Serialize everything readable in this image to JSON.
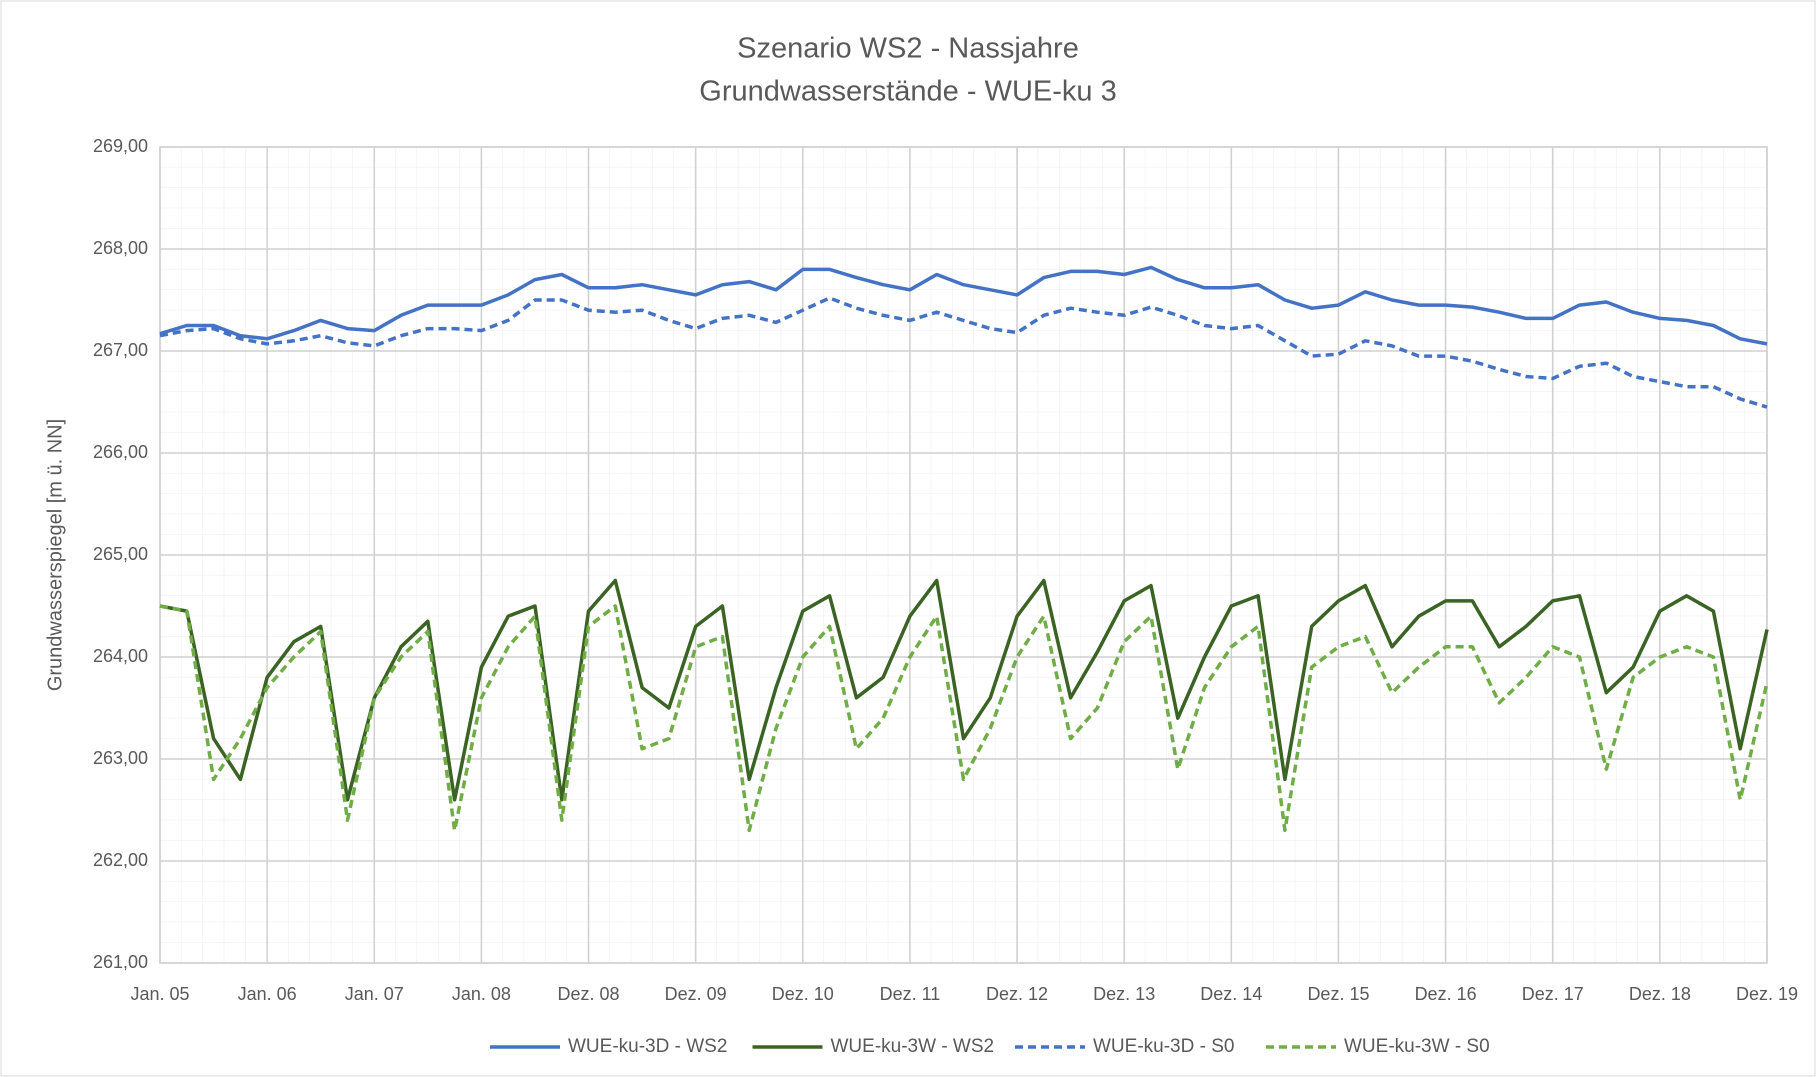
{
  "chart_data": {
    "type": "line",
    "title": "Szenario WS2 - Nassjahre",
    "subtitle": "Grundwasserstände - WUE-ku 3",
    "y_label": "Grundwasserspiegel [m ü. NN]",
    "x": [
      0,
      0.25,
      0.5,
      0.75,
      1,
      1.25,
      1.5,
      1.75,
      2,
      2.25,
      2.5,
      2.75,
      3,
      3.25,
      3.5,
      3.75,
      4,
      4.25,
      4.5,
      4.75,
      5,
      5.25,
      5.5,
      5.75,
      6,
      6.25,
      6.5,
      6.75,
      7,
      7.25,
      7.5,
      7.75,
      8,
      8.25,
      8.5,
      8.75,
      9,
      9.25,
      9.5,
      9.75,
      10,
      10.25,
      10.5,
      10.75,
      11,
      11.25,
      11.5,
      11.75,
      12,
      12.25,
      12.5,
      12.75,
      13,
      13.25,
      13.5,
      13.75,
      14,
      14.25,
      14.5,
      14.75,
      15
    ],
    "xlim": [
      0,
      15
    ],
    "xticks": [
      {
        "value": 0,
        "label": "Jan. 05"
      },
      {
        "value": 1,
        "label": "Jan. 06"
      },
      {
        "value": 2,
        "label": "Jan. 07"
      },
      {
        "value": 3,
        "label": "Jan. 08"
      },
      {
        "value": 4,
        "label": "Dez. 08"
      },
      {
        "value": 5,
        "label": "Dez. 09"
      },
      {
        "value": 6,
        "label": "Dez. 10"
      },
      {
        "value": 7,
        "label": "Dez. 11"
      },
      {
        "value": 8,
        "label": "Dez. 12"
      },
      {
        "value": 9,
        "label": "Dez. 13"
      },
      {
        "value": 10,
        "label": "Dez. 14"
      },
      {
        "value": 11,
        "label": "Dez. 15"
      },
      {
        "value": 12,
        "label": "Dez. 16"
      },
      {
        "value": 13,
        "label": "Dez. 17"
      },
      {
        "value": 14,
        "label": "Dez. 18"
      },
      {
        "value": 15,
        "label": "Dez. 19"
      }
    ],
    "ylim": [
      261,
      269
    ],
    "yticks": [
      {
        "value": 261,
        "label": "261,00"
      },
      {
        "value": 262,
        "label": "262,00"
      },
      {
        "value": 263,
        "label": "263,00"
      },
      {
        "value": 264,
        "label": "264,00"
      },
      {
        "value": 265,
        "label": "265,00"
      },
      {
        "value": 266,
        "label": "266,00"
      },
      {
        "value": 267,
        "label": "267,00"
      },
      {
        "value": 268,
        "label": "268,00"
      },
      {
        "value": 269,
        "label": "269,00"
      }
    ],
    "grid": true,
    "legend": "bottom",
    "series": [
      {
        "name": "WUE-ku-3D - WS2",
        "color": "#4472c4",
        "dashed": false,
        "values": [
          267.17,
          267.25,
          267.25,
          267.15,
          267.12,
          267.2,
          267.3,
          267.22,
          267.2,
          267.35,
          267.45,
          267.45,
          267.45,
          267.55,
          267.7,
          267.75,
          267.62,
          267.62,
          267.65,
          267.6,
          267.55,
          267.65,
          267.68,
          267.6,
          267.8,
          267.8,
          267.72,
          267.65,
          267.6,
          267.75,
          267.65,
          267.6,
          267.55,
          267.72,
          267.78,
          267.78,
          267.75,
          267.82,
          267.7,
          267.62,
          267.62,
          267.65,
          267.5,
          267.42,
          267.45,
          267.58,
          267.5,
          267.45,
          267.45,
          267.43,
          267.38,
          267.32,
          267.32,
          267.45,
          267.48,
          267.38,
          267.32,
          267.3,
          267.25,
          267.12,
          267.07
        ]
      },
      {
        "name": "WUE-ku-3W - WS2",
        "color": "#3b6424",
        "dashed": false,
        "values": [
          264.5,
          264.45,
          263.2,
          262.8,
          263.8,
          264.15,
          264.3,
          262.6,
          263.6,
          264.1,
          264.35,
          262.6,
          263.9,
          264.4,
          264.5,
          262.6,
          264.45,
          264.75,
          263.7,
          263.5,
          264.3,
          264.5,
          262.8,
          263.7,
          264.45,
          264.6,
          263.6,
          263.8,
          264.4,
          264.75,
          263.2,
          263.6,
          264.4,
          264.75,
          263.6,
          264.05,
          264.55,
          264.7,
          263.4,
          264.0,
          264.5,
          264.6,
          262.8,
          264.3,
          264.55,
          264.7,
          264.1,
          264.4,
          264.55,
          264.55,
          264.1,
          264.3,
          264.55,
          264.6,
          263.65,
          263.9,
          264.45,
          264.6,
          264.45,
          263.1,
          264.27
        ]
      },
      {
        "name": "WUE-ku-3D - S0",
        "color": "#4472c4",
        "dashed": true,
        "values": [
          267.15,
          267.2,
          267.22,
          267.12,
          267.07,
          267.1,
          267.15,
          267.08,
          267.05,
          267.15,
          267.22,
          267.22,
          267.2,
          267.3,
          267.5,
          267.5,
          267.4,
          267.38,
          267.4,
          267.3,
          267.22,
          267.32,
          267.35,
          267.28,
          267.4,
          267.52,
          267.42,
          267.35,
          267.3,
          267.38,
          267.3,
          267.22,
          267.18,
          267.35,
          267.42,
          267.38,
          267.35,
          267.43,
          267.35,
          267.25,
          267.22,
          267.25,
          267.1,
          266.95,
          266.97,
          267.1,
          267.05,
          266.95,
          266.95,
          266.9,
          266.82,
          266.75,
          266.73,
          266.85,
          266.88,
          266.75,
          266.7,
          266.65,
          266.65,
          266.53,
          266.45
        ]
      },
      {
        "name": "WUE-ku-3W - S0",
        "color": "#70ad47",
        "dashed": true,
        "values": [
          264.5,
          264.45,
          262.8,
          263.2,
          263.7,
          264.0,
          264.25,
          262.4,
          263.6,
          264.0,
          264.25,
          262.3,
          263.6,
          264.1,
          264.4,
          262.4,
          264.3,
          264.5,
          263.1,
          263.2,
          264.1,
          264.2,
          262.3,
          263.3,
          264.0,
          264.3,
          263.1,
          263.4,
          264.0,
          264.4,
          262.8,
          263.3,
          264.0,
          264.4,
          263.2,
          263.5,
          264.15,
          264.4,
          262.9,
          263.7,
          264.1,
          264.3,
          262.3,
          263.9,
          264.1,
          264.2,
          263.65,
          263.9,
          264.1,
          264.1,
          263.55,
          263.8,
          264.1,
          264.0,
          262.9,
          263.8,
          264.0,
          264.1,
          264.0,
          262.6,
          263.75
        ]
      }
    ]
  }
}
